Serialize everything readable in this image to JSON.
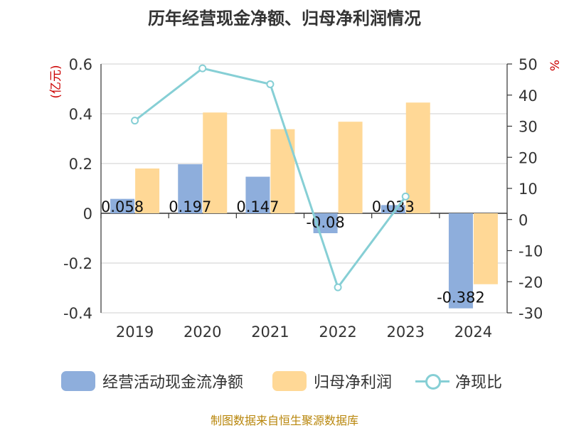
{
  "chart_data": {
    "type": "bar",
    "title": "历年经营现金净额、归母净利润情况",
    "categories": [
      "2019",
      "2020",
      "2021",
      "2022",
      "2023",
      "2024"
    ],
    "series": [
      {
        "name": "经营活动现金流净额",
        "type": "bar",
        "axis": "left",
        "color": "#8eaedc",
        "values": [
          0.058,
          0.197,
          0.147,
          -0.08,
          0.033,
          -0.382
        ],
        "labels": [
          "0.058",
          "0.197",
          "0.147",
          "-0.08",
          "0.033",
          "-0.382"
        ]
      },
      {
        "name": "归母净利润",
        "type": "bar",
        "axis": "left",
        "color": "#ffd896",
        "values": [
          0.18,
          0.405,
          0.338,
          0.368,
          0.445,
          -0.285
        ]
      },
      {
        "name": "净现比",
        "type": "line",
        "axis": "right",
        "color": "#86cfd5",
        "values": [
          31.8,
          48.6,
          43.5,
          -21.8,
          7.4,
          null
        ]
      }
    ],
    "y_left": {
      "label": "(亿元)",
      "ylim": [
        -0.4,
        0.6
      ],
      "ticks": [
        "-0.4",
        "-0.2",
        "0",
        "0.2",
        "0.4",
        "0.6"
      ]
    },
    "y_right": {
      "label": "%",
      "ylim": [
        -30,
        50
      ],
      "ticks": [
        "-30",
        "-20",
        "-10",
        "0",
        "10",
        "20",
        "30",
        "40",
        "50"
      ]
    },
    "grid": true,
    "legend_position": "bottom"
  },
  "legend": {
    "items": [
      "经营活动现金流净额",
      "归母净利润",
      "净现比"
    ],
    "colors": [
      "#8eaedc",
      "#ffd896",
      "#86cfd5"
    ]
  },
  "footer": {
    "source": "制图数据来自恒生聚源数据库"
  }
}
